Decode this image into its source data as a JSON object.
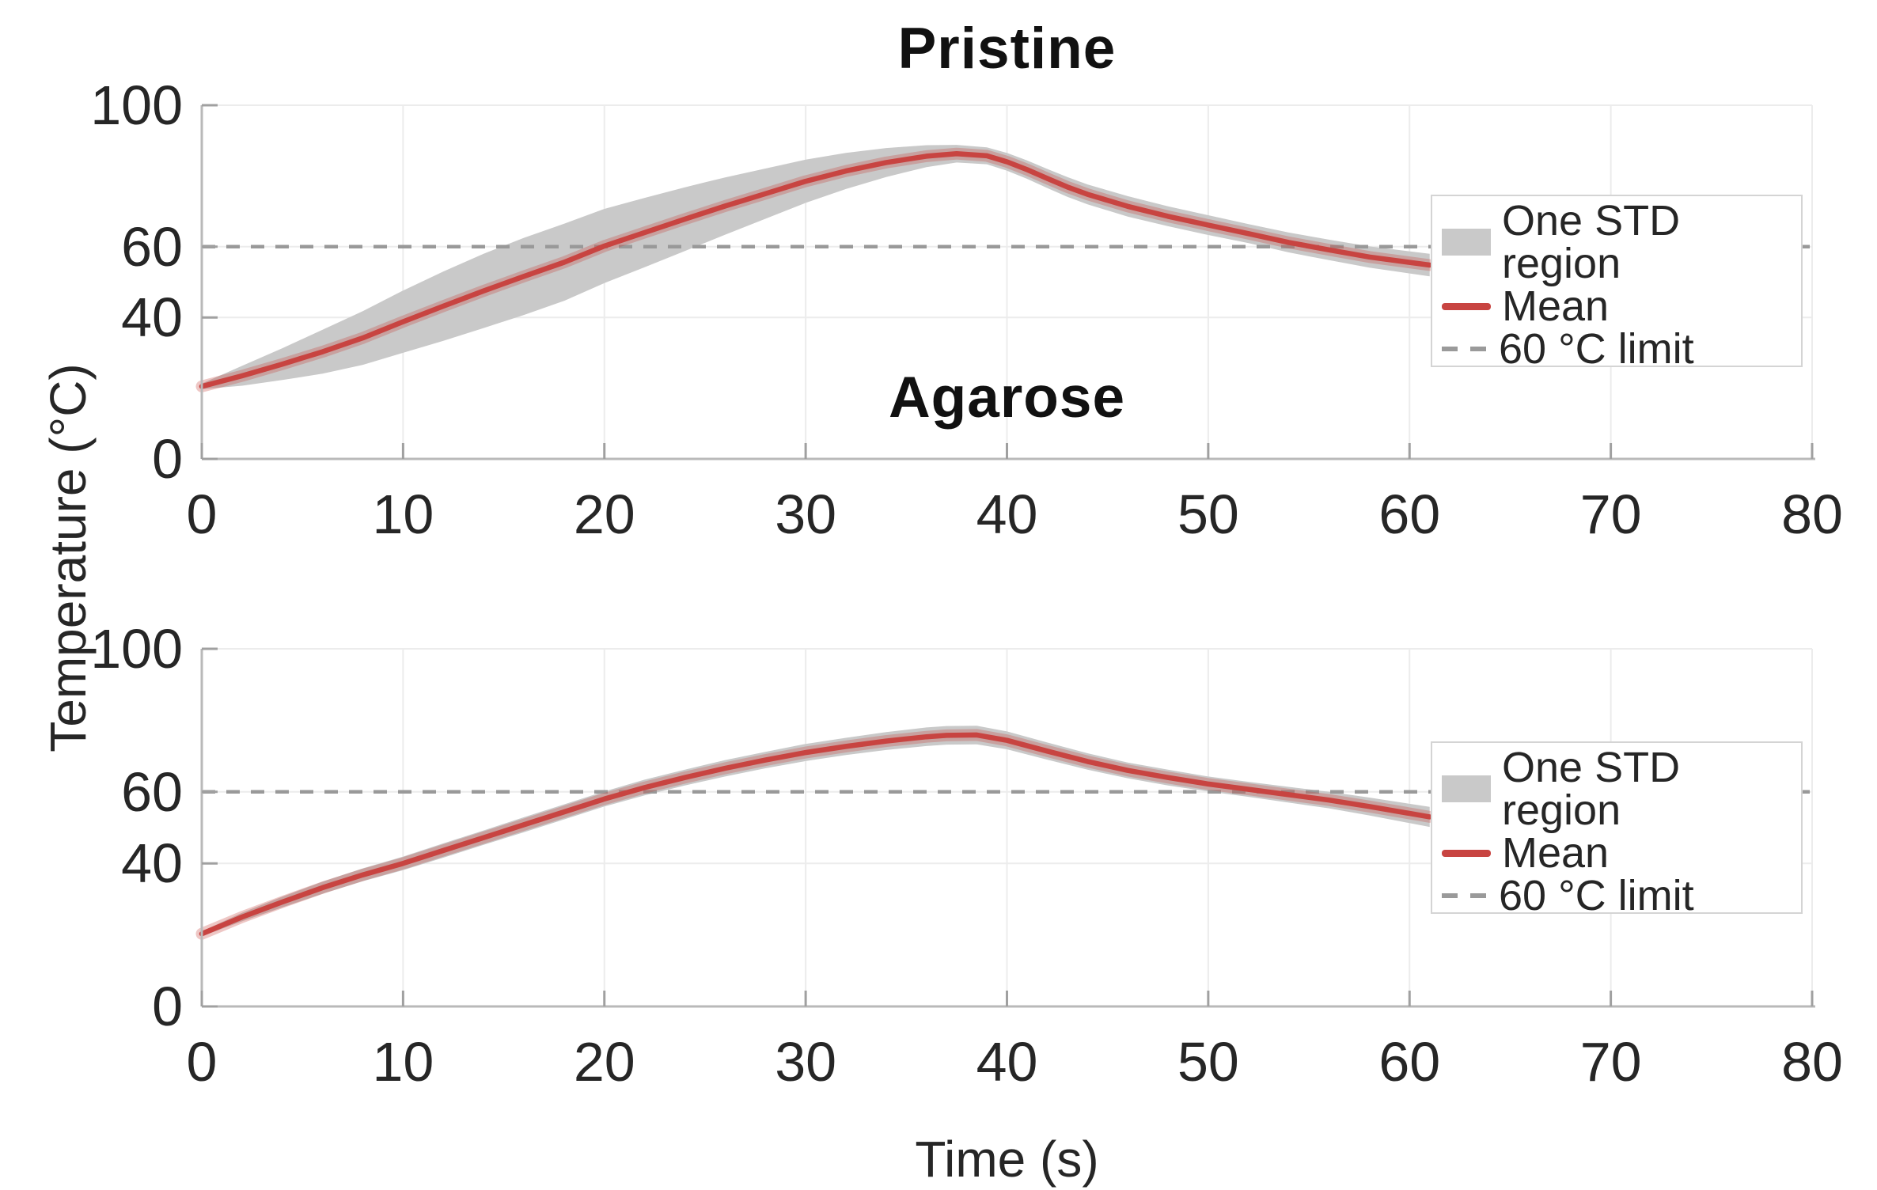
{
  "shared": {
    "ylabel": "Temperature (°C)",
    "xlabel": "Time (s)"
  },
  "colors": {
    "mean": "#c84441",
    "mean_halo": "rgba(200,68,64,0.30)",
    "std_band": "#c9c9c9",
    "limit_line": "#999999",
    "grid": "#ececec",
    "spine": "#b9b9b9",
    "tick": "#a0a0a0",
    "tick_label": "#262626"
  },
  "chart_data": [
    {
      "type": "line",
      "title": "Pristine",
      "xlabel": "Time (s)",
      "ylabel": "Temperature (°C)",
      "xlim": [
        0,
        80
      ],
      "ylim": [
        0,
        100
      ],
      "xticks": [
        0,
        10,
        20,
        30,
        40,
        50,
        60,
        70,
        80
      ],
      "yticks": [
        0,
        40,
        60,
        100
      ],
      "grid": true,
      "limit_value": 60,
      "x": [
        0,
        2,
        4,
        6,
        8,
        10,
        12,
        14,
        16,
        18,
        20,
        22,
        24,
        26,
        28,
        30,
        32,
        34,
        36,
        37.5,
        39,
        40,
        41,
        42,
        43,
        44,
        46,
        48,
        50,
        52,
        54,
        56,
        58,
        61
      ],
      "series": [
        {
          "name": "Mean",
          "values": [
            20.5,
            23.5,
            26.8,
            30.3,
            34.2,
            38.8,
            43.2,
            47.5,
            51.6,
            55.6,
            60.2,
            64.0,
            67.8,
            71.5,
            75.0,
            78.5,
            81.4,
            83.8,
            85.6,
            86.3,
            85.7,
            84.0,
            81.8,
            79.3,
            76.9,
            74.8,
            71.4,
            68.6,
            66.1,
            63.7,
            61.2,
            59.1,
            57.1,
            54.8
          ]
        },
        {
          "name": "One STD region (half-width)",
          "values": [
            0.8,
            2.8,
            4.5,
            6.2,
            7.6,
            8.8,
            9.8,
            10.5,
            10.9,
            10.9,
            10.5,
            9.8,
            9.0,
            8.1,
            7.1,
            6.1,
            5.1,
            4.1,
            3.1,
            2.5,
            2.4,
            2.5,
            2.6,
            2.7,
            2.8,
            2.8,
            2.9,
            2.8,
            2.8,
            2.7,
            2.8,
            2.9,
            3.0,
            3.2
          ]
        }
      ],
      "legend": [
        {
          "label": "One STD region",
          "swatch": "band"
        },
        {
          "label": "Mean",
          "swatch": "line"
        },
        {
          "label": "60 °C limit",
          "swatch": "dash"
        }
      ],
      "legend_position": "right"
    },
    {
      "type": "line",
      "title": "Agarose",
      "xlabel": "Time (s)",
      "ylabel": "Temperature (°C)",
      "xlim": [
        0,
        80
      ],
      "ylim": [
        0,
        100
      ],
      "xticks": [
        0,
        10,
        20,
        30,
        40,
        50,
        60,
        70,
        80
      ],
      "yticks": [
        0,
        40,
        60,
        100
      ],
      "grid": true,
      "limit_value": 60,
      "x": [
        0,
        2,
        4,
        6,
        8,
        10,
        12,
        14,
        16,
        18,
        20,
        22,
        24,
        26,
        28,
        30,
        32,
        34,
        36,
        37,
        38.5,
        40,
        42,
        44,
        46,
        48,
        50,
        52,
        54,
        56,
        58,
        61
      ],
      "series": [
        {
          "name": "Mean",
          "values": [
            20.3,
            25.0,
            29.2,
            33.2,
            36.8,
            40.0,
            43.6,
            47.2,
            50.8,
            54.4,
            58.0,
            61.2,
            64.0,
            66.6,
            68.9,
            71.0,
            72.7,
            74.2,
            75.4,
            75.8,
            75.9,
            74.4,
            71.4,
            68.5,
            66.0,
            64.0,
            62.2,
            60.7,
            59.2,
            57.7,
            55.9,
            53.0
          ]
        },
        {
          "name": "One STD region (half-width)",
          "values": [
            0.7,
            1.2,
            1.5,
            1.7,
            1.8,
            1.9,
            2.0,
            2.0,
            2.1,
            2.1,
            2.1,
            2.2,
            2.2,
            2.3,
            2.3,
            2.4,
            2.4,
            2.5,
            2.6,
            2.6,
            2.6,
            2.5,
            2.4,
            2.3,
            2.2,
            2.2,
            2.1,
            2.1,
            2.2,
            2.3,
            2.5,
            2.8
          ]
        }
      ],
      "legend": [
        {
          "label": "One STD region",
          "swatch": "band"
        },
        {
          "label": "Mean",
          "swatch": "line"
        },
        {
          "label": "60 °C limit",
          "swatch": "dash"
        }
      ],
      "legend_position": "right"
    }
  ]
}
